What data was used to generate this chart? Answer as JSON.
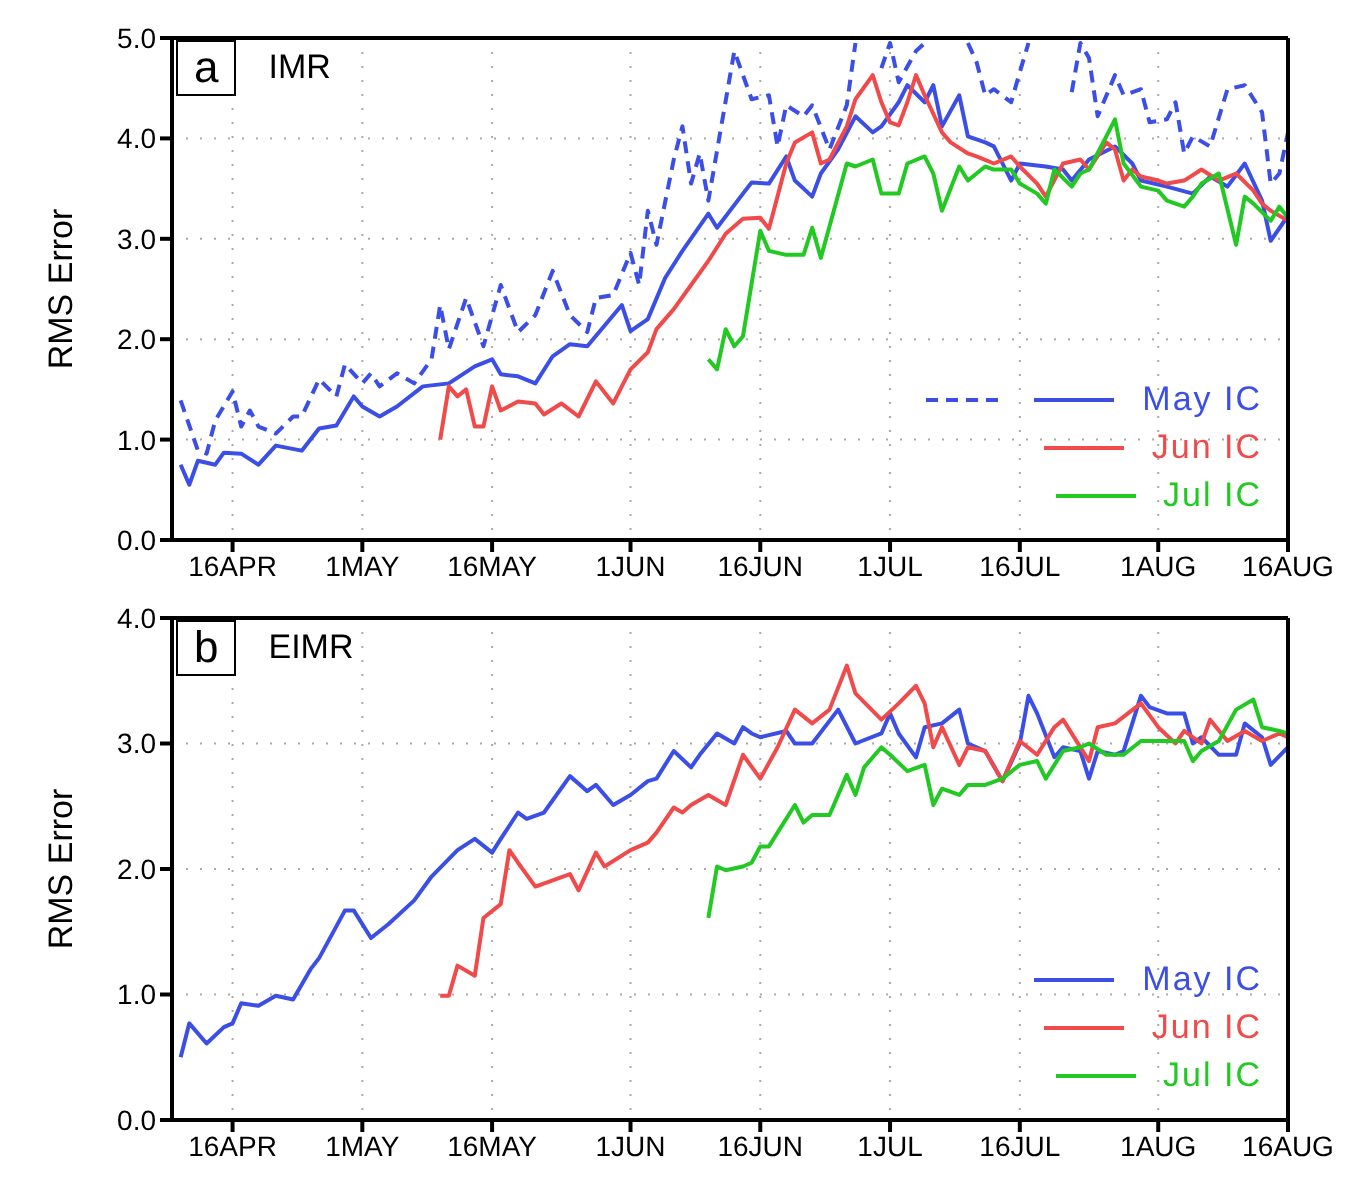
{
  "chart_data": [
    {
      "type": "line",
      "title": "IMR",
      "annotations": [
        "a"
      ],
      "ylabel": "RMS Error",
      "xlim": [
        "--04-09",
        "--08-16"
      ],
      "xticks": [
        {
          "value": "--04-16",
          "label": "16APR"
        },
        {
          "value": "--05-01",
          "label": "1MAY"
        },
        {
          "value": "--05-16",
          "label": "16MAY"
        },
        {
          "value": "--06-01",
          "label": "1JUN"
        },
        {
          "value": "--06-16",
          "label": "16JUN"
        },
        {
          "value": "--07-01",
          "label": "1JUL"
        },
        {
          "value": "--07-16",
          "label": "16JUL"
        },
        {
          "value": "--08-01",
          "label": "1AUG"
        },
        {
          "value": "--08-16",
          "label": "16AUG"
        }
      ],
      "ylim": [
        0,
        5
      ],
      "yticks": [
        {
          "value": 0,
          "label": "0.0"
        },
        {
          "value": 1,
          "label": "1.0"
        },
        {
          "value": 2,
          "label": "2.0"
        },
        {
          "value": 3,
          "label": "3.0"
        },
        {
          "value": 4,
          "label": "4.0"
        },
        {
          "value": 5,
          "label": "5.0"
        }
      ],
      "grid": true,
      "legend": "bottom right",
      "marker": "none",
      "line_style": "solid",
      "series": [
        {
          "color": "#3b4fe6",
          "line_style": "dashed",
          "x": [
            "--04-10",
            "--04-12",
            "--04-13",
            "--04-14",
            "--04-16",
            "--04-17",
            "--04-18",
            "--04-19",
            "--04-21",
            "--04-23",
            "--04-24",
            "--04-26",
            "--04-28",
            "--04-29",
            "--05-01",
            "--05-02",
            "--05-03",
            "--05-05",
            "--05-07",
            "--05-09",
            "--05-10",
            "--05-11",
            "--05-13",
            "--05-15",
            "--05-17",
            "--05-19",
            "--05-21",
            "--05-23",
            "--05-25",
            "--05-27",
            "--05-28",
            "--05-30",
            "--06-01",
            "--06-02",
            "--06-03",
            "--06-04",
            "--06-06",
            "--06-07",
            "--06-08",
            "--06-09",
            "--06-10",
            "--06-13",
            "--06-15",
            "--06-17",
            "--06-18",
            "--06-19",
            "--06-21",
            "--06-22",
            "--06-24",
            "--06-26",
            "--06-27",
            "--06-28",
            "--06-30",
            "--07-01",
            "--07-02",
            "--07-04",
            "--07-05",
            "--07-07",
            "--07-10",
            "--07-11",
            "--07-12",
            "--07-13",
            "--07-15",
            "--07-16",
            "--07-17",
            "--07-20",
            "--07-22",
            "--07-23",
            "--07-24",
            "--07-25",
            "--07-27",
            "--07-28",
            "--07-30",
            "--07-31",
            "--08-02",
            "--08-03",
            "--08-04",
            "--08-05",
            "--08-07",
            "--08-09",
            "--08-11",
            "--08-13",
            "--08-14",
            "--08-15",
            "--08-16"
          ],
          "values": [
            1.39,
            0.89,
            0.86,
            1.19,
            1.48,
            1.13,
            1.29,
            1.13,
            1.06,
            1.23,
            1.23,
            1.6,
            1.43,
            1.75,
            1.56,
            1.66,
            1.53,
            1.66,
            1.56,
            1.8,
            2.34,
            1.9,
            2.41,
            1.93,
            2.54,
            2.07,
            2.24,
            2.68,
            2.24,
            2.07,
            2.41,
            2.44,
            2.86,
            2.54,
            3.28,
            2.94,
            3.79,
            4.12,
            3.55,
            3.85,
            3.38,
            4.87,
            4.39,
            4.43,
            3.92,
            4.33,
            4.22,
            4.33,
            3.89,
            4.33,
            4.95,
            null,
            4.7,
            4.95,
            4.56,
            4.87,
            4.95,
            null,
            4.95,
            4.76,
            4.43,
            4.49,
            4.36,
            4.66,
            4.95,
            null,
            4.46,
            4.95,
            4.8,
            4.22,
            4.63,
            4.43,
            4.49,
            4.16,
            4.19,
            4.36,
            3.85,
            4.02,
            3.92,
            4.49,
            4.53,
            4.26,
            3.55,
            3.65,
            4.06
          ]
        },
        {
          "name": "May IC",
          "color": "#3b4fe6",
          "x": [
            "--04-10",
            "--04-11",
            "--04-12",
            "--04-14",
            "--04-15",
            "--04-17",
            "--04-19",
            "--04-21",
            "--04-24",
            "--04-26",
            "--04-28",
            "--04-30",
            "--05-01",
            "--05-03",
            "--05-05",
            "--05-08",
            "--05-11",
            "--05-14",
            "--05-16",
            "--05-17",
            "--05-19",
            "--05-21",
            "--05-23",
            "--05-25",
            "--05-27",
            "--05-31",
            "--06-01",
            "--06-03",
            "--06-05",
            "--06-07",
            "--06-10",
            "--06-11",
            "--06-14",
            "--06-15",
            "--06-17",
            "--06-19",
            "--06-20",
            "--06-22",
            "--06-23",
            "--06-25",
            "--06-27",
            "--06-29",
            "--06-30",
            "--07-02",
            "--07-03",
            "--07-05",
            "--07-06",
            "--07-07",
            "--07-09",
            "--07-10",
            "--07-12",
            "--07-13",
            "--07-15",
            "--07-16",
            "--07-19",
            "--07-21",
            "--07-22",
            "--07-24",
            "--07-27",
            "--07-29",
            "--07-30",
            "--08-02",
            "--08-05",
            "--08-07",
            "--08-09",
            "--08-11",
            "--08-13",
            "--08-14",
            "--08-16"
          ],
          "values": [
            0.75,
            0.55,
            0.79,
            0.75,
            0.87,
            0.86,
            0.75,
            0.94,
            0.89,
            1.11,
            1.14,
            1.43,
            1.33,
            1.23,
            1.33,
            1.53,
            1.56,
            1.73,
            1.8,
            1.65,
            1.63,
            1.56,
            1.83,
            1.95,
            1.93,
            2.34,
            2.08,
            2.2,
            2.61,
            2.88,
            3.25,
            3.11,
            3.45,
            3.56,
            3.55,
            3.82,
            3.58,
            3.42,
            3.65,
            3.89,
            4.22,
            4.06,
            4.12,
            4.36,
            4.53,
            4.36,
            4.53,
            4.12,
            4.43,
            4.02,
            3.96,
            3.92,
            3.58,
            3.75,
            3.72,
            3.69,
            3.58,
            3.79,
            3.92,
            3.75,
            3.58,
            3.52,
            3.45,
            3.62,
            3.52,
            3.75,
            3.38,
            2.98,
            3.23
          ]
        },
        {
          "name": "Jun IC",
          "color": "#f04a4a",
          "x": [
            "--05-10",
            "--05-11",
            "--05-12",
            "--05-13",
            "--05-14",
            "--05-15",
            "--05-16",
            "--05-17",
            "--05-19",
            "--05-21",
            "--05-22",
            "--05-24",
            "--05-26",
            "--05-28",
            "--05-30",
            "--06-01",
            "--06-03",
            "--06-04",
            "--06-06",
            "--06-08",
            "--06-10",
            "--06-12",
            "--06-14",
            "--06-16",
            "--06-17",
            "--06-19",
            "--06-20",
            "--06-22",
            "--06-23",
            "--06-24",
            "--06-26",
            "--06-27",
            "--06-29",
            "--06-30",
            "--07-01",
            "--07-02",
            "--07-03",
            "--07-04",
            "--07-05",
            "--07-07",
            "--07-08",
            "--07-10",
            "--07-11",
            "--07-13",
            "--07-15",
            "--07-16",
            "--07-18",
            "--07-19",
            "--07-21",
            "--07-23",
            "--07-24",
            "--07-26",
            "--07-27",
            "--07-28",
            "--07-29",
            "--07-30",
            "--08-01",
            "--08-02",
            "--08-04",
            "--08-06",
            "--08-08",
            "--08-10",
            "--08-12",
            "--08-13",
            "--08-14",
            "--08-16"
          ],
          "values": [
            1.0,
            1.53,
            1.43,
            1.5,
            1.13,
            1.13,
            1.53,
            1.29,
            1.38,
            1.36,
            1.25,
            1.36,
            1.23,
            1.58,
            1.36,
            1.7,
            1.87,
            2.1,
            2.3,
            2.54,
            2.78,
            3.05,
            3.2,
            3.21,
            3.1,
            3.75,
            3.96,
            4.06,
            3.75,
            3.79,
            4.12,
            4.39,
            4.63,
            4.36,
            4.16,
            4.13,
            4.36,
            4.63,
            4.43,
            4.06,
            3.96,
            3.85,
            3.82,
            3.75,
            3.82,
            3.72,
            3.55,
            3.42,
            3.75,
            3.79,
            3.69,
            3.96,
            3.89,
            3.58,
            3.69,
            3.62,
            3.58,
            3.55,
            3.58,
            3.69,
            3.58,
            3.65,
            3.48,
            3.35,
            3.28,
            3.18
          ]
        },
        {
          "name": "Jul IC",
          "color": "#22c922",
          "x": [
            "--06-10",
            "--06-11",
            "--06-12",
            "--06-13",
            "--06-14",
            "--06-16",
            "--06-17",
            "--06-19",
            "--06-21",
            "--06-22",
            "--06-23",
            "--06-26",
            "--06-27",
            "--06-29",
            "--06-30",
            "--07-02",
            "--07-03",
            "--07-05",
            "--07-06",
            "--07-07",
            "--07-09",
            "--07-10",
            "--07-12",
            "--07-13",
            "--07-15",
            "--07-16",
            "--07-18",
            "--07-19",
            "--07-20",
            "--07-22",
            "--07-23",
            "--07-24",
            "--07-26",
            "--07-27",
            "--07-28",
            "--07-30",
            "--08-01",
            "--08-02",
            "--08-04",
            "--08-05",
            "--08-06",
            "--08-08",
            "--08-10",
            "--08-11",
            "--08-12",
            "--08-14",
            "--08-15",
            "--08-16"
          ],
          "values": [
            1.8,
            1.7,
            2.1,
            1.93,
            2.03,
            3.08,
            2.88,
            2.84,
            2.84,
            3.11,
            2.81,
            3.75,
            3.72,
            3.79,
            3.45,
            3.45,
            3.75,
            3.82,
            3.65,
            3.28,
            3.72,
            3.58,
            3.72,
            3.69,
            3.69,
            3.55,
            3.45,
            3.35,
            3.69,
            3.52,
            3.65,
            3.69,
            4.02,
            4.19,
            3.75,
            3.52,
            3.48,
            3.38,
            3.32,
            3.42,
            3.55,
            3.65,
            2.94,
            3.42,
            3.35,
            3.18,
            3.32,
            3.21
          ]
        }
      ]
    },
    {
      "type": "line",
      "title": "EIMR",
      "annotations": [
        "b"
      ],
      "ylabel": "RMS Error",
      "xlim": [
        "--04-09",
        "--08-16"
      ],
      "xticks": [
        {
          "value": "--04-16",
          "label": "16APR"
        },
        {
          "value": "--05-01",
          "label": "1MAY"
        },
        {
          "value": "--05-16",
          "label": "16MAY"
        },
        {
          "value": "--06-01",
          "label": "1JUN"
        },
        {
          "value": "--06-16",
          "label": "16JUN"
        },
        {
          "value": "--07-01",
          "label": "1JUL"
        },
        {
          "value": "--07-16",
          "label": "16JUL"
        },
        {
          "value": "--08-01",
          "label": "1AUG"
        },
        {
          "value": "--08-16",
          "label": "16AUG"
        }
      ],
      "ylim": [
        0,
        4
      ],
      "yticks": [
        {
          "value": 0,
          "label": "0.0"
        },
        {
          "value": 1,
          "label": "1.0"
        },
        {
          "value": 2,
          "label": "2.0"
        },
        {
          "value": 3,
          "label": "3.0"
        },
        {
          "value": 4,
          "label": "4.0"
        }
      ],
      "grid": true,
      "legend": "bottom right",
      "marker": "none",
      "line_style": "solid",
      "series": [
        {
          "name": "May IC",
          "color": "#3b4fe6",
          "x": [
            "--04-10",
            "--04-11",
            "--04-13",
            "--04-15",
            "--04-16",
            "--04-17",
            "--04-19",
            "--04-21",
            "--04-23",
            "--04-25",
            "--04-26",
            "--04-29",
            "--04-30",
            "--05-02",
            "--05-04",
            "--05-07",
            "--05-09",
            "--05-12",
            "--05-14",
            "--05-16",
            "--05-17",
            "--05-19",
            "--05-20",
            "--05-22",
            "--05-25",
            "--05-27",
            "--05-28",
            "--05-30",
            "--06-01",
            "--06-03",
            "--06-04",
            "--06-06",
            "--06-08",
            "--06-09",
            "--06-11",
            "--06-13",
            "--06-14",
            "--06-15",
            "--06-16",
            "--06-19",
            "--06-20",
            "--06-22",
            "--06-25",
            "--06-27",
            "--06-30",
            "--07-01",
            "--07-02",
            "--07-04",
            "--07-05",
            "--07-07",
            "--07-09",
            "--07-10",
            "--07-12",
            "--07-14",
            "--07-16",
            "--07-17",
            "--07-18",
            "--07-20",
            "--07-21",
            "--07-23",
            "--07-24",
            "--07-25",
            "--07-27",
            "--07-28",
            "--07-30",
            "--07-31",
            "--08-02",
            "--08-04",
            "--08-05",
            "--08-06",
            "--08-08",
            "--08-10",
            "--08-11",
            "--08-13",
            "--08-14",
            "--08-16"
          ],
          "values": [
            0.5,
            0.77,
            0.61,
            0.74,
            0.77,
            0.93,
            0.91,
            0.99,
            0.96,
            1.2,
            1.29,
            1.67,
            1.67,
            1.45,
            1.56,
            1.75,
            1.94,
            2.15,
            2.24,
            2.13,
            2.24,
            2.45,
            2.4,
            2.45,
            2.74,
            2.62,
            2.67,
            2.51,
            2.59,
            2.7,
            2.72,
            2.94,
            2.81,
            2.91,
            3.08,
            3.0,
            3.13,
            3.08,
            3.05,
            3.1,
            3.0,
            3.0,
            3.27,
            3.0,
            3.08,
            3.24,
            3.08,
            2.89,
            3.13,
            3.16,
            3.27,
            3.0,
            2.94,
            2.7,
            3.0,
            3.38,
            3.24,
            2.89,
            2.97,
            2.94,
            2.72,
            2.94,
            2.91,
            2.94,
            3.38,
            3.29,
            3.24,
            3.24,
            3.0,
            3.05,
            2.91,
            2.91,
            3.16,
            3.05,
            2.83,
            2.97
          ]
        },
        {
          "name": "Jun IC",
          "color": "#f04a4a",
          "x": [
            "--05-10",
            "--05-11",
            "--05-12",
            "--05-14",
            "--05-15",
            "--05-17",
            "--05-18",
            "--05-19",
            "--05-21",
            "--05-23",
            "--05-25",
            "--05-26",
            "--05-28",
            "--05-29",
            "--06-01",
            "--06-03",
            "--06-04",
            "--06-06",
            "--06-07",
            "--06-08",
            "--06-10",
            "--06-12",
            "--06-14",
            "--06-16",
            "--06-18",
            "--06-20",
            "--06-22",
            "--06-24",
            "--06-26",
            "--06-27",
            "--06-30",
            "--07-02",
            "--07-04",
            "--07-05",
            "--07-06",
            "--07-07",
            "--07-09",
            "--07-10",
            "--07-12",
            "--07-14",
            "--07-16",
            "--07-18",
            "--07-20",
            "--07-21",
            "--07-24",
            "--07-25",
            "--07-27",
            "--07-30",
            "--08-01",
            "--08-03",
            "--08-04",
            "--08-06",
            "--08-07",
            "--08-09",
            "--08-11",
            "--08-13",
            "--08-15",
            "--08-16"
          ],
          "values": [
            0.99,
            0.99,
            1.23,
            1.15,
            1.61,
            1.72,
            2.15,
            2.05,
            1.86,
            1.91,
            1.96,
            1.83,
            2.13,
            2.02,
            2.15,
            2.21,
            2.29,
            2.49,
            2.45,
            2.51,
            2.59,
            2.51,
            2.91,
            2.72,
            2.97,
            3.27,
            3.16,
            3.27,
            3.62,
            3.4,
            3.19,
            3.32,
            3.46,
            3.32,
            2.97,
            3.13,
            2.83,
            2.97,
            2.94,
            2.7,
            3.02,
            2.91,
            3.13,
            3.19,
            2.86,
            3.13,
            3.16,
            3.32,
            3.13,
            3.0,
            3.1,
            3.0,
            3.19,
            3.02,
            3.1,
            3.02,
            3.08,
            3.05
          ]
        },
        {
          "name": "Jul IC",
          "color": "#22c922",
          "x": [
            "--06-10",
            "--06-11",
            "--06-12",
            "--06-14",
            "--06-15",
            "--06-16",
            "--06-17",
            "--06-20",
            "--06-21",
            "--06-22",
            "--06-24",
            "--06-26",
            "--06-27",
            "--06-28",
            "--06-30",
            "--07-01",
            "--07-03",
            "--07-05",
            "--07-06",
            "--07-07",
            "--07-09",
            "--07-10",
            "--07-12",
            "--07-14",
            "--07-16",
            "--07-18",
            "--07-19",
            "--07-21",
            "--07-23",
            "--07-24",
            "--07-26",
            "--07-28",
            "--07-30",
            "--08-02",
            "--08-04",
            "--08-05",
            "--08-06",
            "--08-08",
            "--08-10",
            "--08-12",
            "--08-13",
            "--08-15",
            "--08-16"
          ],
          "values": [
            1.61,
            2.02,
            1.99,
            2.02,
            2.05,
            2.18,
            2.18,
            2.51,
            2.37,
            2.43,
            2.43,
            2.75,
            2.59,
            2.81,
            2.97,
            2.91,
            2.78,
            2.83,
            2.51,
            2.64,
            2.59,
            2.67,
            2.67,
            2.72,
            2.83,
            2.86,
            2.72,
            2.94,
            2.97,
            3.0,
            2.91,
            2.91,
            3.02,
            3.02,
            3.02,
            2.86,
            2.94,
            3.02,
            3.27,
            3.35,
            3.13,
            3.1,
            3.08
          ]
        }
      ]
    }
  ]
}
